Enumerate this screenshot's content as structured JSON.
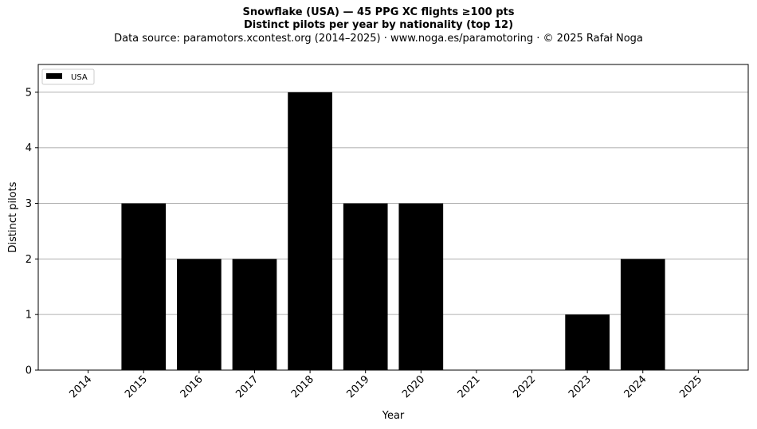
{
  "header": {
    "title": "Snowflake (USA)  —  45 PPG XC flights ≥100 pts",
    "subtitle": "Distinct pilots per year by nationality (top 12)",
    "source": "Data source: paramotors.xcontest.org (2014–2025)  ·  www.noga.es/paramotoring  ·  © 2025 Rafał Noga"
  },
  "chart_data": {
    "type": "bar",
    "xlabel": "Year",
    "ylabel": "Distinct pilots",
    "categories": [
      "2014",
      "2015",
      "2016",
      "2017",
      "2018",
      "2019",
      "2020",
      "2021",
      "2022",
      "2023",
      "2024",
      "2025"
    ],
    "series": [
      {
        "name": "USA",
        "color": "#000000",
        "values": [
          0,
          3,
          2,
          2,
          5,
          3,
          3,
          0,
          0,
          1,
          2,
          0
        ]
      }
    ],
    "ylim": [
      0,
      5.5
    ],
    "yticks": [
      0,
      1,
      2,
      3,
      4,
      5
    ],
    "grid": "y",
    "legend": "top-left"
  }
}
